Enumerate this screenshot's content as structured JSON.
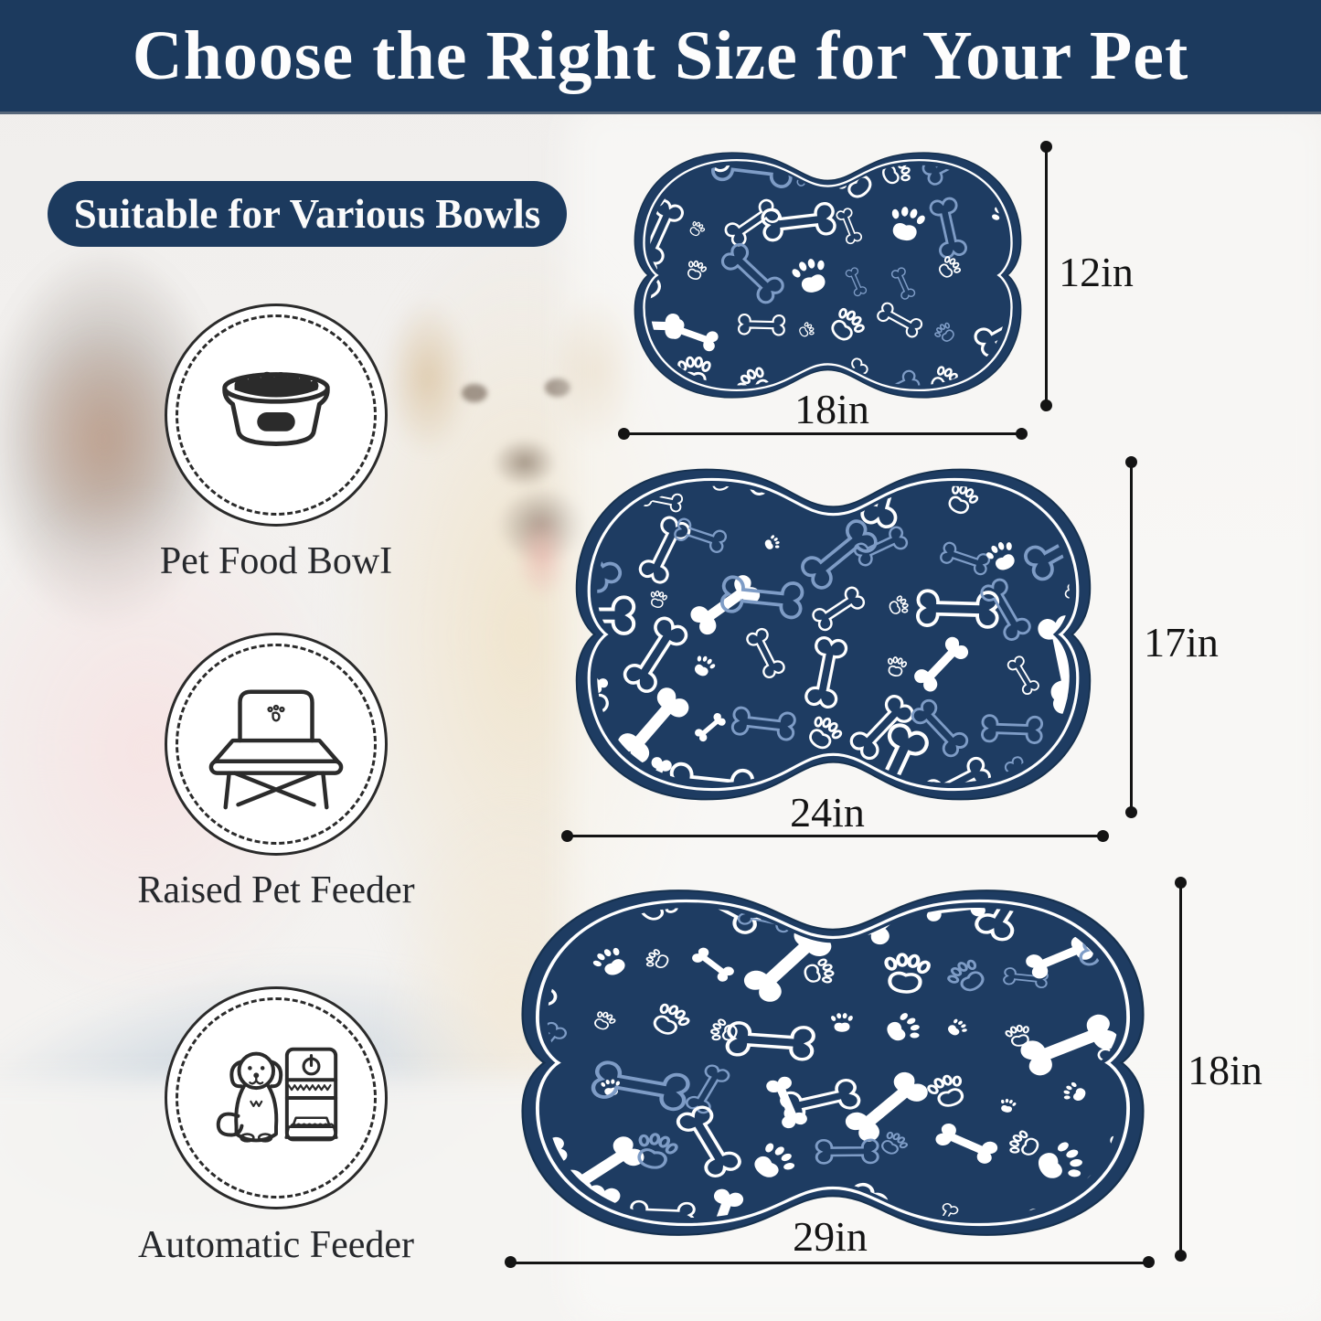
{
  "banner": {
    "title": "Choose the Right Size for Your Pet"
  },
  "badge": {
    "label": "Suitable for Various Bowls"
  },
  "features": [
    {
      "label": "Pet Food BowI",
      "icon": "pet-food-bowl-icon"
    },
    {
      "label": "Raised Pet Feeder",
      "icon": "raised-pet-feeder-icon"
    },
    {
      "label": "Automatic Feeder",
      "icon": "automatic-feeder-icon"
    }
  ],
  "mats": [
    {
      "name": "small",
      "width_label": "18in",
      "height_label": "12in"
    },
    {
      "name": "medium",
      "width_label": "24in",
      "height_label": "17in"
    },
    {
      "name": "large",
      "width_label": "29in",
      "height_label": "18in"
    }
  ],
  "colors": {
    "banner_bg": "#1c3a5e",
    "badge_bg": "#1c3a5e",
    "mat_bg": "#1e3c62",
    "mat_edge": "#16314f",
    "mat_inner_line": "#ffffff",
    "pattern_white": "#ffffff",
    "pattern_blue": "#7e9cc6",
    "dimension": "#141414",
    "icon_stroke": "#2b2b2b"
  }
}
